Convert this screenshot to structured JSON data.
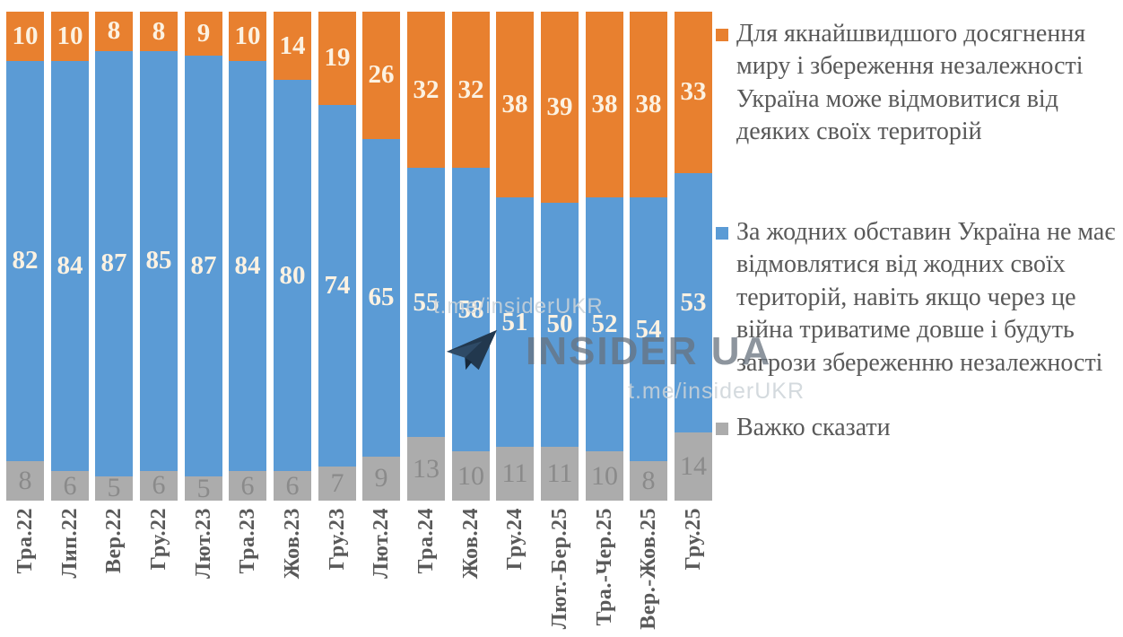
{
  "chart_data": {
    "type": "bar",
    "variant": "stacked-100",
    "title": "",
    "xlabel": "",
    "ylabel": "",
    "ylim": [
      0,
      100
    ],
    "grid": false,
    "legend_position": "right",
    "stack_order": "top-to-bottom",
    "categories": [
      "Тра.22",
      "Лип.22",
      "Вер.22",
      "Гру.22",
      "Лют.23",
      "Тра.23",
      "Жов.23",
      "Гру.23",
      "Лют.24",
      "Тра.24",
      "Жов.24",
      "Гру.24",
      "Лют.-Бер.25",
      "Тра.-Чер.25",
      "Вер.-Жов.25",
      "Гру.25"
    ],
    "series": [
      {
        "key": "concede-territories",
        "name": "Для якнайшвидшого досягнення миру і збереження незалежності Україна може відмовитися від деяких своїх територій",
        "color": "#E8802F",
        "label_color": "#FCF2E2",
        "values": [
          10,
          10,
          8,
          8,
          9,
          10,
          14,
          19,
          26,
          32,
          32,
          38,
          39,
          38,
          38,
          33
        ]
      },
      {
        "key": "no-concessions",
        "name": "За жодних обставин Україна не має відмовлятися від жодних своїх територій, навіть якщо через це війна триватиме довше і будуть загрози збереженню незалежності",
        "color": "#5B9BD5",
        "label_color": "#FCF2E2",
        "values": [
          82,
          84,
          87,
          85,
          87,
          84,
          80,
          74,
          65,
          55,
          58,
          51,
          50,
          52,
          54,
          53
        ]
      },
      {
        "key": "hard-to-say",
        "name": "Важко сказати",
        "color": "#ACACAC",
        "label_color": "#8A8A8A",
        "values": [
          8,
          6,
          5,
          6,
          5,
          6,
          6,
          7,
          9,
          13,
          10,
          11,
          11,
          10,
          8,
          14
        ]
      }
    ]
  },
  "legend": {
    "items": [
      {
        "label": "Для якнайшвидшого досягнення миру і збереження незалежності Україна може відмовитися від деяких своїх територій",
        "color": "#E8802F"
      },
      {
        "label": "За жодних обставин Україна не має відмовлятися від жодних своїх територій, навіть якщо через це війна триватиме довше і будуть загрози збереженню незалежності",
        "color": "#5B9BD5"
      },
      {
        "label": "Важко сказати",
        "color": "#ACACAC"
      }
    ]
  },
  "watermark": {
    "top_url": "t.me/insiderUKR",
    "brand": "INSIDER UA",
    "bottom_url": "t.me/insiderUKR"
  }
}
